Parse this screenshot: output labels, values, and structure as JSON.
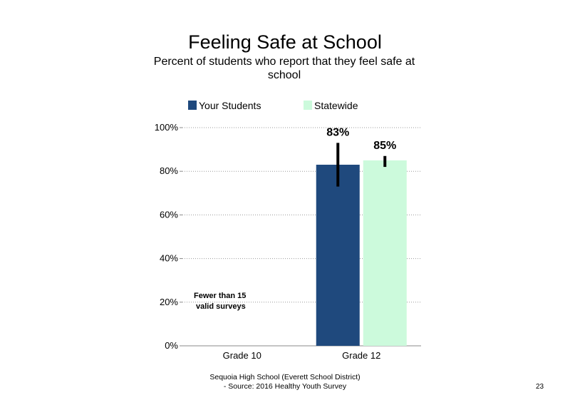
{
  "page": {
    "title": "Feeling Safe at School",
    "subtitle": "Percent of students  who report that they feel safe at school",
    "footer_line1": "Sequoia High  School (Everett School District)",
    "footer_line2": "- Source: 2016 Healthy  Youth Survey",
    "page_number": "23"
  },
  "chart_data": {
    "type": "bar",
    "categories": [
      "Grade 10",
      "Grade 12"
    ],
    "series": [
      {
        "name": "Your Students",
        "color": "#1F497D",
        "values": [
          null,
          83
        ],
        "labels": [
          "",
          "83%"
        ],
        "error": [
          null,
          [
            73,
            93
          ]
        ]
      },
      {
        "name": "Statewide",
        "color": "#CCFADC",
        "values": [
          null,
          85
        ],
        "labels": [
          "",
          "85%"
        ],
        "error": [
          null,
          [
            82,
            87
          ]
        ]
      }
    ],
    "yticks": [
      "0%",
      "20%",
      "40%",
      "60%",
      "80%",
      "100%"
    ],
    "ylim": [
      0,
      100
    ],
    "grid": "dotted horizontal",
    "legend_position": "top",
    "annotation": "Fewer than 15 valid surveys"
  }
}
